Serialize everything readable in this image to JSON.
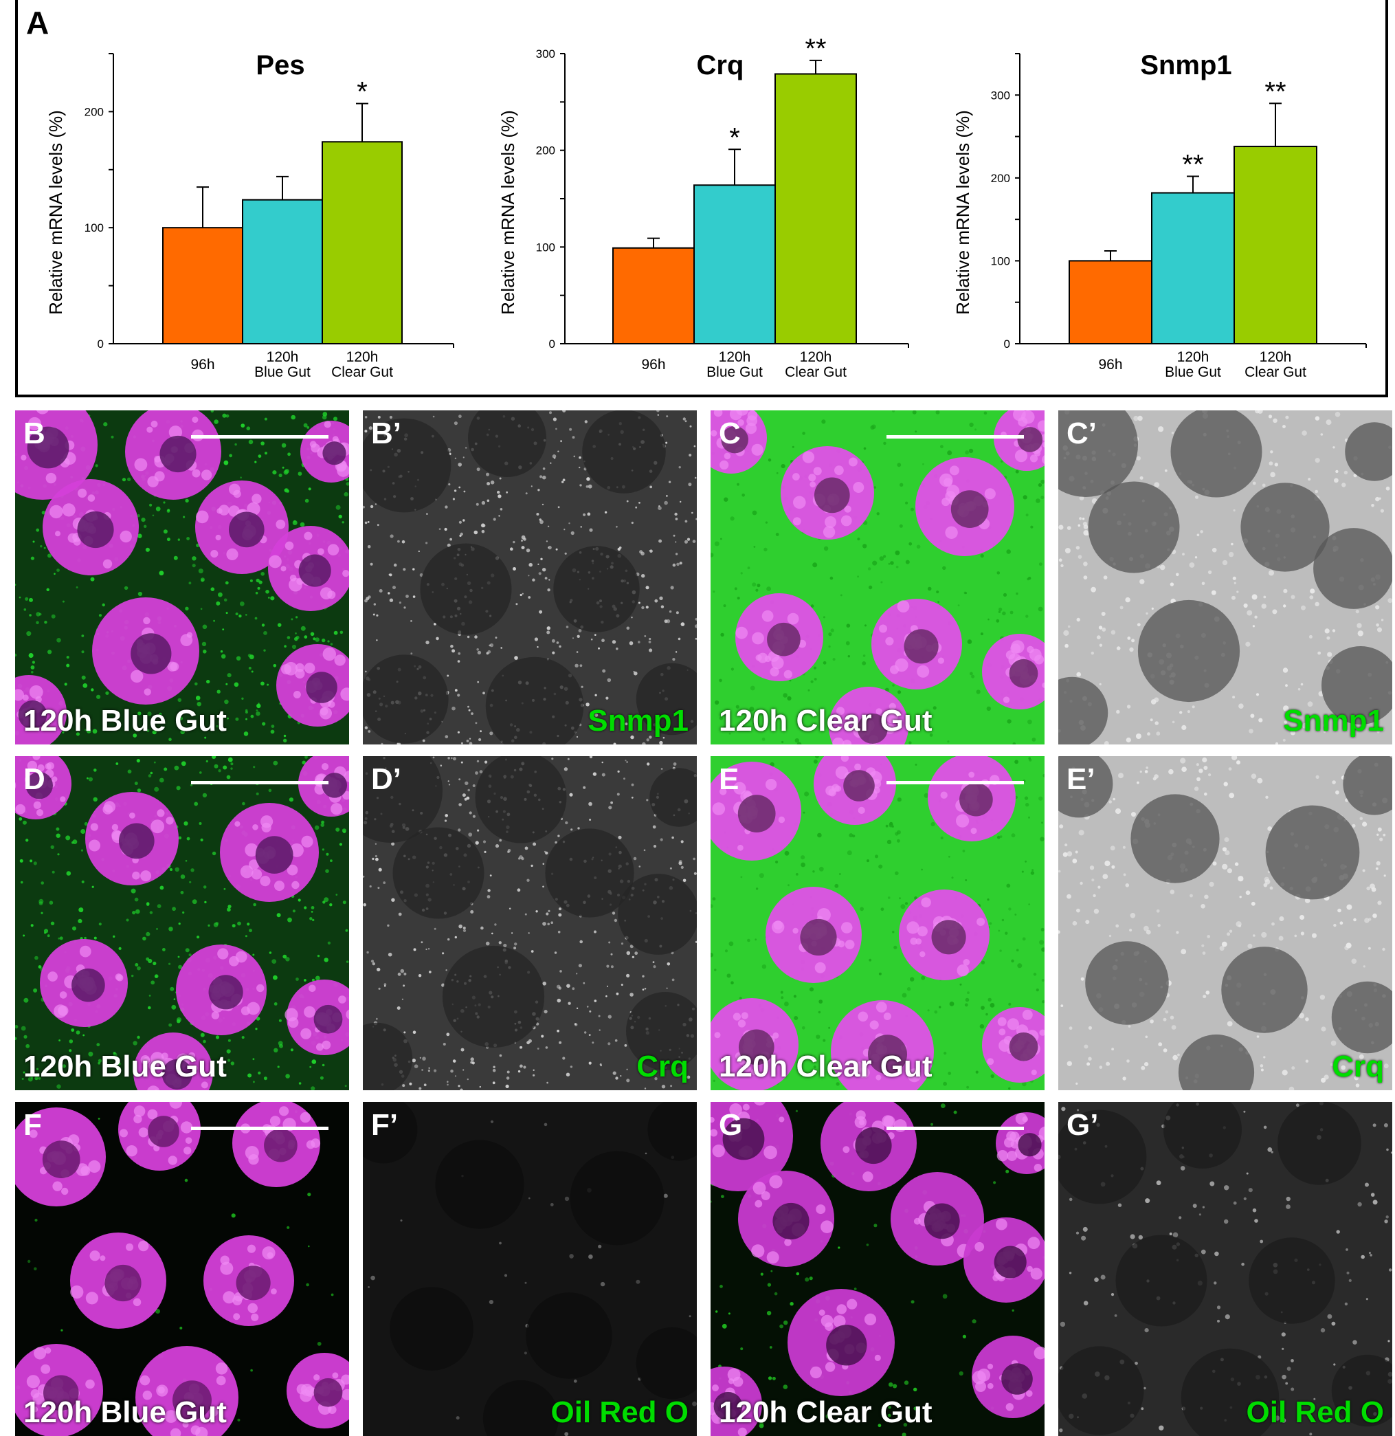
{
  "figure": {
    "panel_a_letter": "A",
    "colors": {
      "orange": "#ff6a00",
      "cyan": "#33cccc",
      "green": "#99cc00",
      "magenta": "#e23ce8",
      "fluor_green": "#00dd00"
    }
  },
  "chart_data": [
    {
      "type": "bar",
      "title": "Pes",
      "ylabel": "Relative mRNA levels (%)",
      "xlabel": "",
      "categories": [
        "96h",
        "120h Blue Gut",
        "120h Clear Gut"
      ],
      "category_lines": [
        [
          "96h"
        ],
        [
          "120h",
          "Blue Gut"
        ],
        [
          "120h",
          "Clear Gut"
        ]
      ],
      "values": [
        100,
        124,
        174
      ],
      "errors": [
        35,
        20,
        33
      ],
      "significance": [
        "",
        "",
        "*"
      ],
      "ylim": [
        0,
        250
      ],
      "yticks": [
        0,
        100,
        200
      ],
      "ytick_labels": [
        "0",
        "100",
        "200"
      ],
      "minor_tick_step": 50,
      "colors": [
        "#ff6a00",
        "#33cccc",
        "#99cc00"
      ],
      "grid": false
    },
    {
      "type": "bar",
      "title": "Crq",
      "ylabel": "Relative mRNA levels (%)",
      "xlabel": "",
      "categories": [
        "96h",
        "120h Blue Gut",
        "120h Clear Gut"
      ],
      "category_lines": [
        [
          "96h"
        ],
        [
          "120h",
          "Blue Gut"
        ],
        [
          "120h",
          "Clear Gut"
        ]
      ],
      "values": [
        99,
        164,
        279
      ],
      "errors": [
        10,
        37,
        14
      ],
      "significance": [
        "",
        "*",
        "**"
      ],
      "ylim": [
        0,
        300
      ],
      "yticks": [
        0,
        100,
        200,
        300
      ],
      "ytick_labels": [
        "0",
        "100",
        "200",
        "300"
      ],
      "minor_tick_step": 50,
      "colors": [
        "#ff6a00",
        "#33cccc",
        "#99cc00"
      ],
      "grid": false
    },
    {
      "type": "bar",
      "title": "Snmp1",
      "ylabel": "Relative mRNA levels (%)",
      "xlabel": "",
      "categories": [
        "96h",
        "120h Blue Gut",
        "120h Clear Gut"
      ],
      "category_lines": [
        [
          "96h"
        ],
        [
          "120h",
          "Blue Gut"
        ],
        [
          "120h",
          "Clear Gut"
        ]
      ],
      "values": [
        100,
        182,
        238
      ],
      "errors": [
        12,
        20,
        52
      ],
      "significance": [
        "",
        "**",
        "**"
      ],
      "ylim": [
        0,
        350
      ],
      "yticks": [
        0,
        100,
        200,
        300
      ],
      "ytick_labels": [
        "0",
        "100",
        "200",
        "300"
      ],
      "minor_tick_step": 50,
      "colors": [
        "#ff6a00",
        "#33cccc",
        "#99cc00"
      ],
      "grid": false
    }
  ],
  "micrographs": [
    {
      "letter": "B",
      "caption": "120h Blue Gut",
      "stain": "",
      "style": "merge-blue"
    },
    {
      "letter": "B’",
      "caption": "",
      "stain": "Snmp1",
      "style": "grey-dots"
    },
    {
      "letter": "C",
      "caption": "120h Clear Gut",
      "stain": "",
      "style": "merge-clear"
    },
    {
      "letter": "C’",
      "caption": "",
      "stain": "Snmp1",
      "style": "grey-bright"
    },
    {
      "letter": "D",
      "caption": "120h Blue Gut",
      "stain": "",
      "style": "merge-blue"
    },
    {
      "letter": "D’",
      "caption": "",
      "stain": "Crq",
      "style": "grey-dots"
    },
    {
      "letter": "E",
      "caption": "120h Clear Gut",
      "stain": "",
      "style": "merge-clear"
    },
    {
      "letter": "E’",
      "caption": "",
      "stain": "Crq",
      "style": "grey-bright"
    },
    {
      "letter": "F",
      "caption": "120h Blue Gut",
      "stain": "",
      "style": "merge-dark"
    },
    {
      "letter": "F’",
      "caption": "",
      "stain": "Oil Red O",
      "style": "grey-dark"
    },
    {
      "letter": "G",
      "caption": "120h Clear Gut",
      "stain": "",
      "style": "merge-dark-dots"
    },
    {
      "letter": "G’",
      "caption": "",
      "stain": "Oil Red O",
      "style": "grey-dark-dots"
    }
  ]
}
